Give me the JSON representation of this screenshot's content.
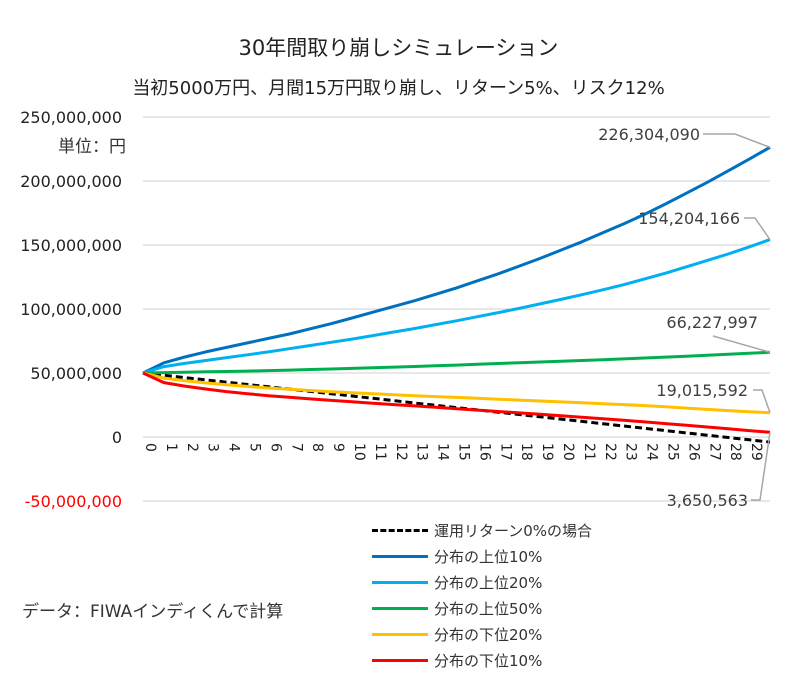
{
  "chart_data": {
    "type": "line",
    "title": "30年間取り崩しシミュレーション",
    "subtitle": "当初5000万円、月間15万円取り崩し、リターン5%、リスク12%",
    "unit_label": "単位：円",
    "source_note": "データ：FIWAインディくんで計算",
    "xlabel": "",
    "ylabel": "",
    "ylim": [
      -50000000,
      250000000
    ],
    "xlim": [
      0,
      30
    ],
    "grid": true,
    "legend_position": "bottom-right",
    "y_ticks": [
      {
        "value": 250000000,
        "label": "250,000,000",
        "color": "#222222"
      },
      {
        "value": 200000000,
        "label": "200,000,000",
        "color": "#222222"
      },
      {
        "value": 150000000,
        "label": "150,000,000",
        "color": "#222222"
      },
      {
        "value": 100000000,
        "label": "100,000,000",
        "color": "#222222"
      },
      {
        "value": 50000000,
        "label": "50,000,000",
        "color": "#222222"
      },
      {
        "value": 0,
        "label": "0",
        "color": "#222222"
      },
      {
        "value": -50000000,
        "label": "-50,000,000",
        "color": "#ff0000"
      }
    ],
    "x_ticks": [
      "0",
      "1",
      "2",
      "3",
      "4",
      "5",
      "6",
      "7",
      "8",
      "9",
      "10",
      "11",
      "12",
      "13",
      "14",
      "15",
      "16",
      "17",
      "18",
      "19",
      "20",
      "21",
      "22",
      "23",
      "24",
      "25",
      "26",
      "27",
      "28",
      "29"
    ],
    "x": [
      0,
      1,
      2,
      3,
      4,
      5,
      6,
      7,
      8,
      9,
      10,
      11,
      12,
      13,
      14,
      15,
      16,
      17,
      18,
      19,
      20,
      21,
      22,
      23,
      24,
      25,
      26,
      27,
      28,
      29,
      30
    ],
    "series": [
      {
        "name": "運用リターン0%の場合",
        "color": "#000000",
        "dashed": true,
        "values": [
          50000000,
          48200000,
          46400000,
          44600000,
          42800000,
          41000000,
          39200000,
          37400000,
          35600000,
          33800000,
          32000000,
          30200000,
          28400000,
          26600000,
          24800000,
          23000000,
          21200000,
          19400000,
          17600000,
          15800000,
          14000000,
          12200000,
          10400000,
          8600000,
          6800000,
          5000000,
          3200000,
          1400000,
          -400000,
          -2200000,
          -4000000
        ]
      },
      {
        "name": "分布の上位10%",
        "color": "#0070c0",
        "dashed": false,
        "values": [
          50000000,
          58000000,
          62500000,
          66500000,
          70000000,
          73500000,
          77000000,
          80500000,
          84500000,
          88500000,
          93000000,
          97500000,
          102000000,
          106500000,
          111500000,
          116500000,
          122000000,
          127500000,
          133500000,
          139500000,
          146000000,
          152500000,
          159500000,
          166500000,
          174000000,
          182000000,
          190500000,
          199000000,
          208000000,
          217000000,
          226304090
        ]
      },
      {
        "name": "分布の上位20%",
        "color": "#00b0f0",
        "dashed": false,
        "values": [
          50000000,
          55000000,
          57500000,
          59800000,
          62000000,
          64200000,
          66500000,
          69000000,
          71500000,
          74000000,
          76500000,
          79200000,
          82000000,
          84800000,
          87800000,
          90800000,
          94000000,
          97200000,
          100500000,
          104000000,
          107500000,
          111200000,
          115000000,
          119000000,
          123500000,
          128000000,
          133000000,
          138000000,
          143000000,
          148500000,
          154204166
        ]
      },
      {
        "name": "分布の上位50%",
        "color": "#00b050",
        "dashed": false,
        "values": [
          50000000,
          50300000,
          50600000,
          50900000,
          51200000,
          51500000,
          51900000,
          52300000,
          52700000,
          53100000,
          53600000,
          54100000,
          54600000,
          55100000,
          55600000,
          56200000,
          56800000,
          57400000,
          58000000,
          58600000,
          59200000,
          59800000,
          60400000,
          61000000,
          61700000,
          62400000,
          63100000,
          63800000,
          64600000,
          65400000,
          66227997
        ]
      },
      {
        "name": "分布の下位20%",
        "color": "#ffc000",
        "dashed": false,
        "values": [
          50000000,
          46000000,
          44000000,
          42300000,
          40800000,
          39500000,
          38300000,
          37300000,
          36300000,
          35400000,
          34600000,
          33800000,
          33000000,
          32300000,
          31600000,
          30900000,
          30200000,
          29500000,
          28800000,
          28100000,
          27400000,
          26700000,
          26000000,
          25300000,
          24500000,
          23600000,
          22600000,
          21600000,
          20600000,
          19800000,
          19015592
        ]
      },
      {
        "name": "分布の下位10%",
        "color": "#ff0000",
        "dashed": false,
        "values": [
          50000000,
          42500000,
          39800000,
          37500000,
          35500000,
          33800000,
          32300000,
          31000000,
          29800000,
          28600000,
          27500000,
          26400000,
          25300000,
          24300000,
          23200000,
          22100000,
          21000000,
          19900000,
          18800000,
          17700000,
          16600000,
          15500000,
          14300000,
          13100000,
          11800000,
          10500000,
          9200000,
          7800000,
          6400000,
          5000000,
          3650563
        ]
      }
    ],
    "annotations": [
      {
        "series": "分布の上位10%",
        "x": 30,
        "label": "226,304,090"
      },
      {
        "series": "分布の上位20%",
        "x": 30,
        "label": "154,204,166"
      },
      {
        "series": "分布の上位50%",
        "x": 30,
        "label": "66,227,997"
      },
      {
        "series": "分布の下位20%",
        "x": 30,
        "label": "19,015,592"
      },
      {
        "series": "分布の下位10%",
        "x": 30,
        "label": "3,650,563"
      }
    ]
  },
  "legend": {
    "items": [
      {
        "label": "運用リターン0%の場合"
      },
      {
        "label": "分布の上位10%"
      },
      {
        "label": "分布の上位20%"
      },
      {
        "label": "分布の上位50%"
      },
      {
        "label": "分布の下位20%"
      },
      {
        "label": "分布の下位10%"
      }
    ]
  }
}
